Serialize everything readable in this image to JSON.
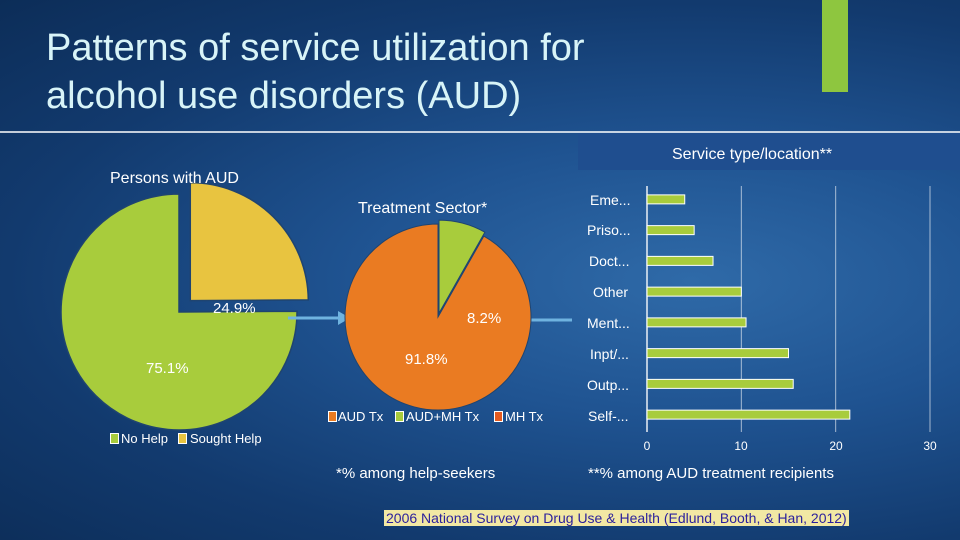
{
  "slide": {
    "title_line1": "Patterns of service utilization for",
    "title_line2": "alcohol use disorders (AUD)",
    "accent_color": "#8ec63f"
  },
  "left_pie": {
    "header": "Persons with AUD",
    "label_no_help": "75.1%",
    "label_sought": "24.9%",
    "legend": [
      "No Help",
      "Sought Help"
    ],
    "colors": {
      "no_help": "#a8cc3c",
      "sought_help": "#e8c440"
    }
  },
  "middle_pie": {
    "header": "Treatment Sector*",
    "label_aud_tx": "91.8%",
    "label_aud_mh": "8.2%",
    "legend": [
      "AUD Tx",
      "AUD+MH Tx",
      "MH Tx"
    ],
    "colors": {
      "aud_tx": "#ea7b22",
      "aud_mh_tx": "#a8cc3c",
      "mh_tx": "#e45a1f"
    },
    "footnote": "*% among help-seekers"
  },
  "right_chart": {
    "header": "Service type/location**",
    "footnote": "**% among AUD treatment recipients",
    "bar_color": "#a8cc3c"
  },
  "source": "2006 National Survey on Drug Use & Health (Edlund, Booth, & Han, 2012)",
  "chart_data": [
    {
      "type": "pie",
      "title": "Persons with AUD",
      "categories": [
        "No Help",
        "Sought Help"
      ],
      "values": [
        75.1,
        24.9
      ]
    },
    {
      "type": "pie",
      "title": "Treatment Sector*",
      "categories": [
        "AUD Tx",
        "AUD+MH Tx",
        "MH Tx"
      ],
      "values": [
        91.8,
        8.2,
        0
      ]
    },
    {
      "type": "bar",
      "orientation": "horizontal",
      "title": "Service type/location**",
      "categories": [
        "Eme...",
        "Priso...",
        "Doct...",
        "Other",
        "Ment...",
        "Inpt/...",
        "Outp...",
        "Self-..."
      ],
      "values": [
        4,
        5,
        7,
        10,
        10.5,
        15,
        15.5,
        21.5
      ],
      "xlim": [
        0,
        30
      ],
      "xticks": [
        0,
        10,
        20,
        30
      ],
      "grid": true
    }
  ]
}
